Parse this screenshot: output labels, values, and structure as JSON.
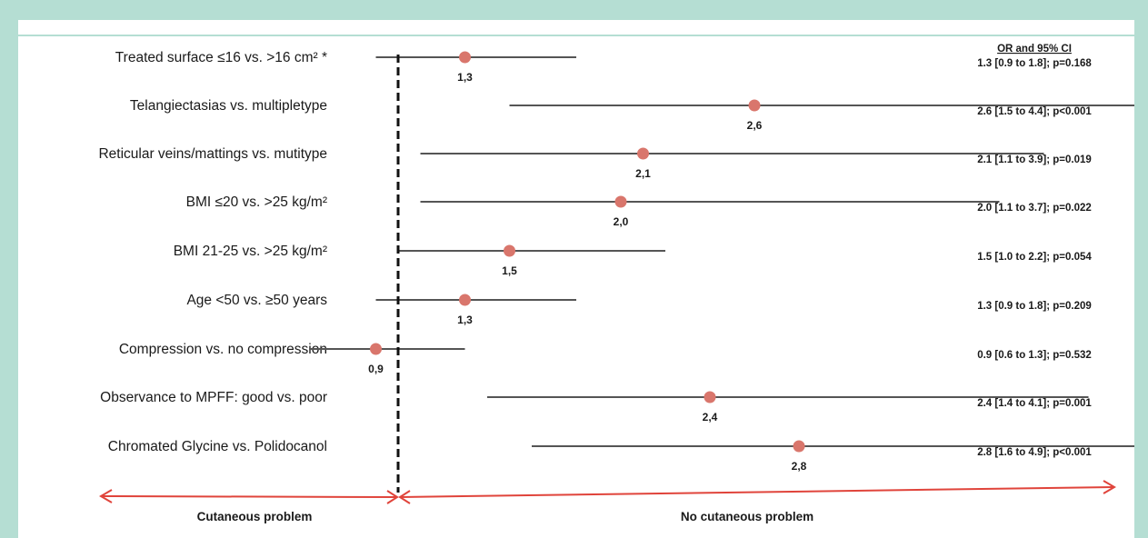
{
  "chart_data": {
    "type": "forest",
    "header": "OR and 95% CI",
    "reference_value": 1,
    "rows": [
      {
        "label": "Treated surface ≤16 vs. >16 cm² *",
        "or": 1.3,
        "lo": 0.9,
        "hi": 1.8,
        "value_label": "1,3",
        "ci_text": "1.3 [0.9 to 1.8]; p=0.168"
      },
      {
        "label": "Telangiectasias vs. multipletype",
        "or": 2.6,
        "lo": 1.5,
        "hi": 4.4,
        "value_label": "2,6",
        "ci_text": "2.6 [1.5 to 4.4]; p<0.001"
      },
      {
        "label": "Reticular veins/mattings vs. mutitype",
        "or": 2.1,
        "lo": 1.1,
        "hi": 3.9,
        "value_label": "2,1",
        "ci_text": "2.1 [1.1 to 3.9]; p=0.019"
      },
      {
        "label": "BMI ≤20 vs. >25 kg/m²",
        "or": 2.0,
        "lo": 1.1,
        "hi": 3.7,
        "value_label": "2,0",
        "ci_text": "2.0 [1.1 to 3.7]; p=0.022"
      },
      {
        "label": "BMI 21-25 vs. >25 kg/m²",
        "or": 1.5,
        "lo": 1.0,
        "hi": 2.2,
        "value_label": "1,5",
        "ci_text": "1.5 [1.0 to 2.2]; p=0.054"
      },
      {
        "label": "Age <50 vs. ≥50 years",
        "or": 1.3,
        "lo": 0.9,
        "hi": 1.8,
        "value_label": "1,3",
        "ci_text": "1.3 [0.9 to 1.8]; p=0.209"
      },
      {
        "label": "Compression vs. no compression",
        "or": 0.9,
        "lo": 0.6,
        "hi": 1.3,
        "value_label": "0,9",
        "ci_text": "0.9 [0.6 to 1.3]; p=0.532"
      },
      {
        "label": "Observance to MPFF: good vs. poor",
        "or": 2.4,
        "lo": 1.4,
        "hi": 4.1,
        "value_label": "2,4",
        "ci_text": "2.4 [1.4 to 4.1]; p=0.001"
      },
      {
        "label": "Chromated Glycine vs. Polidocanol",
        "or": 2.8,
        "lo": 1.6,
        "hi": 4.9,
        "value_label": "2,8",
        "ci_text": "2.8 [1.6 to 4.9]; p<0.001"
      }
    ],
    "bottom_labels": {
      "left": "Cutaneous problem",
      "right": "No cutaneous problem"
    },
    "colors": {
      "point": "#d9766c",
      "ci_line": "#555555",
      "arrow": "#e0443b",
      "frame": "#b5ded3"
    }
  }
}
